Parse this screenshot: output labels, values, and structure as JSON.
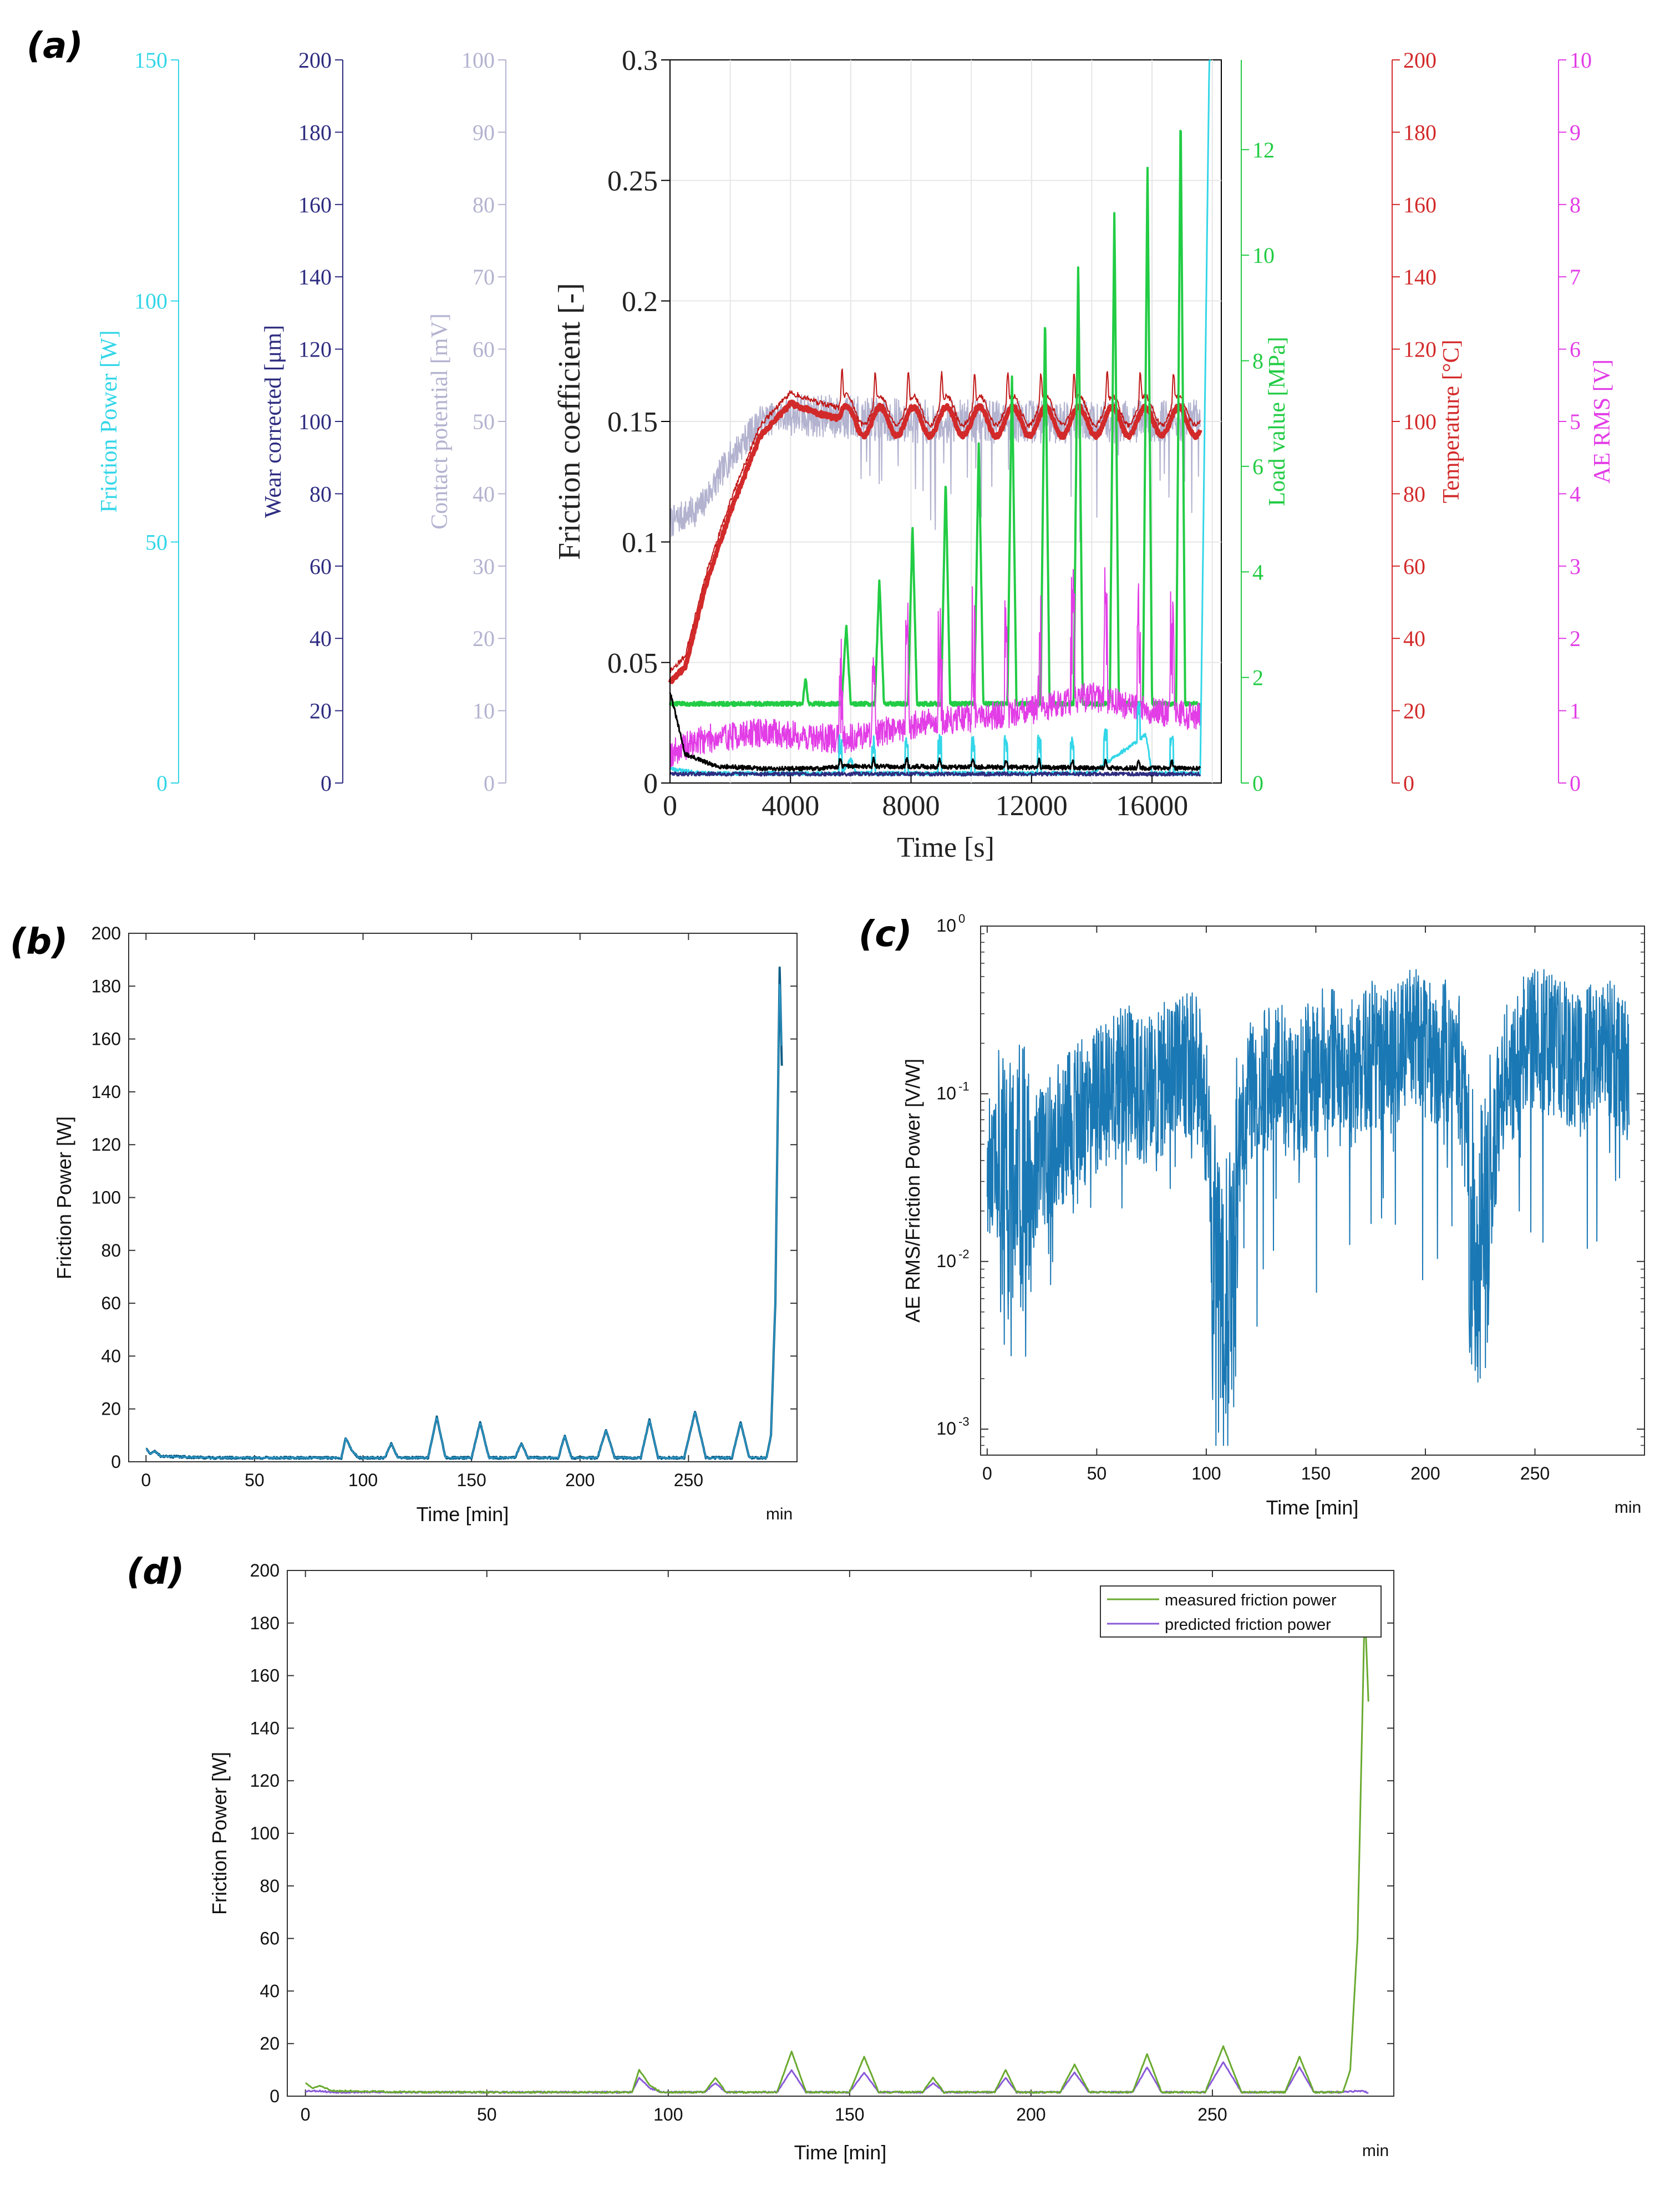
{
  "panel_labels": {
    "a": "(a)",
    "b": "(b)",
    "c": "(c)",
    "d": "(d)"
  },
  "colors": {
    "friction_power": "#33d6e8",
    "wear": "#2e2c80",
    "contact": "#b3b3d0",
    "friction": "#000000",
    "load": "#22cc44",
    "temperature": "#d22a2a",
    "ae": "#e23de6",
    "trace": "#1f77b4",
    "measured": "#6aaa30",
    "predicted": "#8a5ad8"
  },
  "chart_data": [
    {
      "panel": "a",
      "type": "line",
      "xlabel": "Time [s]",
      "xlim": [
        0,
        18300
      ],
      "xticks": [
        "0",
        "4000",
        "8000",
        "12000",
        "16000"
      ],
      "xtick_values": [
        0,
        4000,
        8000,
        12000,
        16000
      ],
      "axes": {
        "friction_power": {
          "label": "Friction Power [W]",
          "range": [
            0,
            150
          ],
          "ticks": [
            "0",
            "50",
            "100",
            "150"
          ]
        },
        "wear": {
          "label": "Wear corrected [μm]",
          "range": [
            0,
            200
          ],
          "ticks": [
            "0",
            "20",
            "40",
            "60",
            "80",
            "100",
            "120",
            "140",
            "160",
            "180",
            "200"
          ]
        },
        "contact": {
          "label": "Contact potential [mV]",
          "range": [
            0,
            100
          ],
          "ticks": [
            "0",
            "10",
            "20",
            "30",
            "40",
            "50",
            "60",
            "70",
            "80",
            "90",
            "100"
          ]
        },
        "friction": {
          "label": "Friction coefficient [-]",
          "range": [
            0,
            0.3
          ],
          "ticks": [
            "0",
            "0.05",
            "0.1",
            "0.15",
            "0.2",
            "0.25",
            "0.3"
          ]
        },
        "load": {
          "label": "Load value [MPa]",
          "range": [
            0,
            13.7
          ],
          "ticks": [
            "0",
            "2",
            "4",
            "6",
            "8",
            "10",
            "12"
          ]
        },
        "temperature": {
          "label": "Temperature [°C]",
          "range": [
            0,
            200
          ],
          "ticks": [
            "0",
            "20",
            "40",
            "60",
            "80",
            "100",
            "120",
            "140",
            "160",
            "180",
            "200"
          ]
        },
        "ae": {
          "label": "AE RMS [V]",
          "range": [
            0,
            10
          ],
          "ticks": [
            "0",
            "1",
            "2",
            "3",
            "4",
            "5",
            "6",
            "7",
            "8",
            "9",
            "10"
          ]
        }
      },
      "series": [
        {
          "name": "Friction coefficient",
          "axis": "friction",
          "points": [
            [
              0,
              0.038
            ],
            [
              500,
              0.012
            ],
            [
              1500,
              0.007
            ],
            [
              3000,
              0.006
            ],
            [
              5000,
              0.006
            ],
            [
              5700,
              0.007
            ],
            [
              18000,
              0.006
            ]
          ]
        },
        {
          "name": "Temperature",
          "axis": "temperature",
          "points": [
            [
              0,
              28
            ],
            [
              500,
              32
            ],
            [
              1200,
              55
            ],
            [
              2000,
              75
            ],
            [
              3000,
              96
            ],
            [
              4000,
              105
            ],
            [
              5000,
              102
            ],
            [
              6000,
              100
            ],
            [
              18000,
              100
            ]
          ]
        },
        {
          "name": "Contact potential",
          "axis": "contact",
          "points": [
            [
              0,
              36
            ],
            [
              1000,
              38
            ],
            [
              2000,
              45
            ],
            [
              3000,
              50
            ],
            [
              4000,
              51
            ],
            [
              8000,
              50
            ],
            [
              12000,
              50
            ],
            [
              16000,
              50
            ],
            [
              18000,
              50
            ]
          ]
        },
        {
          "name": "Load value",
          "axis": "load",
          "points": [
            [
              0,
              1.5
            ],
            [
              4400,
              1.5
            ],
            [
              4500,
              2.0
            ],
            [
              4600,
              1.5
            ],
            [
              5700,
              1.5
            ],
            [
              5850,
              3.0
            ],
            [
              6000,
              1.5
            ],
            [
              6800,
              1.5
            ],
            [
              6950,
              3.9
            ],
            [
              7100,
              1.5
            ],
            [
              7900,
              1.5
            ],
            [
              8050,
              4.9
            ],
            [
              8200,
              1.5
            ],
            [
              9000,
              1.5
            ],
            [
              9150,
              5.8
            ],
            [
              9300,
              1.5
            ],
            [
              10100,
              1.5
            ],
            [
              10250,
              6.5
            ],
            [
              10400,
              1.5
            ],
            [
              11200,
              1.5
            ],
            [
              11350,
              7.8
            ],
            [
              11500,
              1.5
            ],
            [
              12300,
              1.5
            ],
            [
              12450,
              8.9
            ],
            [
              12600,
              1.5
            ],
            [
              13400,
              1.5
            ],
            [
              13550,
              9.9
            ],
            [
              13700,
              1.5
            ],
            [
              14600,
              1.5
            ],
            [
              14750,
              10.9
            ],
            [
              14900,
              1.5
            ],
            [
              15700,
              1.5
            ],
            [
              15850,
              11.8
            ],
            [
              16000,
              1.5
            ],
            [
              16800,
              1.5
            ],
            [
              16950,
              12.8
            ],
            [
              17100,
              1.5
            ],
            [
              17600,
              1.5
            ]
          ]
        },
        {
          "name": "AE RMS",
          "axis": "ae",
          "points": [
            [
              0,
              0.4
            ],
            [
              1000,
              0.6
            ],
            [
              3000,
              0.7
            ],
            [
              5700,
              0.6
            ],
            [
              8000,
              0.8
            ],
            [
              12000,
              1.0
            ],
            [
              14000,
              1.2
            ],
            [
              16000,
              1.0
            ],
            [
              18000,
              0.9
            ]
          ]
        },
        {
          "name": "Friction Power",
          "axis": "friction_power",
          "points": [
            [
              0,
              3
            ],
            [
              1000,
              2
            ],
            [
              5700,
              2
            ],
            [
              6000,
              5
            ],
            [
              6200,
              2
            ],
            [
              14000,
              2
            ],
            [
              15800,
              10
            ],
            [
              16000,
              2
            ],
            [
              17600,
              2
            ],
            [
              17900,
              150
            ]
          ]
        }
      ]
    },
    {
      "panel": "b",
      "type": "line",
      "xlabel": "Time [min]",
      "ylabel": "Friction Power [W]",
      "xunit_note": "min",
      "xlim": [
        -8,
        300
      ],
      "ylim": [
        0,
        200
      ],
      "xticks": [
        "0",
        "50",
        "100",
        "150",
        "200",
        "250"
      ],
      "xtick_values": [
        0,
        50,
        100,
        150,
        200,
        250
      ],
      "yticks": [
        "0",
        "20",
        "40",
        "60",
        "80",
        "100",
        "120",
        "140",
        "160",
        "180",
        "200"
      ],
      "ytick_values": [
        0,
        20,
        40,
        60,
        80,
        100,
        120,
        140,
        160,
        180,
        200
      ],
      "series": [
        {
          "name": "Friction power",
          "x": [
            0,
            2,
            4,
            7,
            10,
            30,
            60,
            90,
            92,
            95,
            98,
            110,
            113,
            116,
            130,
            134,
            138,
            150,
            154,
            158,
            170,
            173,
            176,
            190,
            193,
            196,
            208,
            212,
            216,
            228,
            232,
            236,
            248,
            253,
            258,
            270,
            274,
            278,
            286,
            288,
            290,
            292,
            293
          ],
          "y": [
            5,
            3,
            4,
            2,
            2,
            1.5,
            1.5,
            1.5,
            9,
            4,
            1.5,
            1.5,
            7,
            1.5,
            1.5,
            17,
            1.5,
            1.5,
            15,
            1.5,
            1.5,
            7,
            1.5,
            1.5,
            10,
            1.5,
            1.5,
            12,
            1.5,
            1.5,
            16,
            1.5,
            1.5,
            19,
            1.5,
            1.5,
            15,
            1.5,
            1.5,
            10,
            60,
            187,
            150
          ]
        }
      ]
    },
    {
      "panel": "c",
      "type": "line",
      "yscale": "log",
      "xlabel": "Time [min]",
      "ylabel": "AE RMS/Friction Power [V/W]",
      "xunit_note": "min",
      "xlim": [
        -3,
        300
      ],
      "ylim": [
        0.0007,
        1
      ],
      "xticks": [
        "0",
        "50",
        "100",
        "150",
        "200",
        "250"
      ],
      "xtick_values": [
        0,
        50,
        100,
        150,
        200,
        250
      ],
      "ytick_bases": [
        "10",
        "10",
        "10",
        "10"
      ],
      "ytick_exponents": [
        "-3",
        "-2",
        "-1",
        "0"
      ],
      "ytick_values": [
        0.001,
        0.01,
        0.1,
        1
      ],
      "series": [
        {
          "name": "AE RMS / Friction Power",
          "x": [
            0,
            5,
            10,
            15,
            20,
            25,
            30,
            35,
            40,
            45,
            50,
            55,
            60,
            65,
            70,
            75,
            80,
            85,
            90,
            95,
            100,
            103,
            106,
            110,
            113,
            116,
            120,
            125,
            130,
            135,
            140,
            145,
            150,
            155,
            160,
            165,
            170,
            175,
            180,
            185,
            190,
            195,
            200,
            205,
            210,
            215,
            220,
            223,
            226,
            230,
            235,
            240,
            245,
            250,
            255,
            260,
            265,
            270,
            275,
            280,
            285,
            290,
            293
          ],
          "y_center": [
            0.04,
            0.03,
            0.02,
            0.025,
            0.03,
            0.04,
            0.05,
            0.06,
            0.07,
            0.08,
            0.09,
            0.1,
            0.12,
            0.13,
            0.11,
            0.1,
            0.12,
            0.15,
            0.15,
            0.14,
            0.08,
            0.01,
            0.005,
            0.006,
            0.01,
            0.05,
            0.1,
            0.12,
            0.14,
            0.12,
            0.1,
            0.12,
            0.15,
            0.16,
            0.14,
            0.12,
            0.15,
            0.18,
            0.16,
            0.15,
            0.2,
            0.22,
            0.2,
            0.18,
            0.17,
            0.15,
            0.02,
            0.01,
            0.012,
            0.03,
            0.1,
            0.15,
            0.18,
            0.2,
            0.22,
            0.18,
            0.16,
            0.15,
            0.18,
            0.2,
            0.18,
            0.16,
            0.1
          ]
        }
      ]
    },
    {
      "panel": "d",
      "type": "line",
      "xlabel": "Time [min]",
      "ylabel": "Friction Power [W]",
      "xunit_note": "min",
      "xlim": [
        -5,
        300
      ],
      "ylim": [
        0,
        200
      ],
      "xticks": [
        "0",
        "50",
        "100",
        "150",
        "200",
        "250"
      ],
      "xtick_values": [
        0,
        50,
        100,
        150,
        200,
        250
      ],
      "yticks": [
        "0",
        "20",
        "40",
        "60",
        "80",
        "100",
        "120",
        "140",
        "160",
        "180",
        "200"
      ],
      "ytick_values": [
        0,
        20,
        40,
        60,
        80,
        100,
        120,
        140,
        160,
        180,
        200
      ],
      "legend": [
        "measured friction power",
        "predicted friction power"
      ],
      "legend_position": "top-right",
      "series": [
        {
          "name": "measured friction power",
          "x": [
            0,
            2,
            4,
            7,
            10,
            30,
            60,
            90,
            92,
            95,
            98,
            110,
            113,
            116,
            130,
            134,
            138,
            150,
            154,
            158,
            170,
            173,
            176,
            190,
            193,
            196,
            208,
            212,
            216,
            228,
            232,
            236,
            248,
            253,
            258,
            270,
            274,
            278,
            286,
            288,
            290,
            292,
            293
          ],
          "y": [
            5,
            3,
            4,
            2,
            2,
            1.5,
            1.5,
            1.5,
            10,
            4,
            1.5,
            1.5,
            7,
            1.5,
            1.5,
            17,
            1.5,
            1.5,
            15,
            1.5,
            1.5,
            7,
            1.5,
            1.5,
            10,
            1.5,
            1.5,
            12,
            1.5,
            1.5,
            16,
            1.5,
            1.5,
            19,
            1.5,
            1.5,
            15,
            1.5,
            1.5,
            10,
            60,
            187,
            150
          ]
        },
        {
          "name": "predicted friction power",
          "x": [
            0,
            2,
            4,
            7,
            10,
            30,
            60,
            90,
            92,
            95,
            98,
            110,
            113,
            116,
            130,
            134,
            138,
            150,
            154,
            158,
            170,
            173,
            176,
            190,
            193,
            196,
            208,
            212,
            216,
            228,
            232,
            236,
            248,
            253,
            258,
            270,
            274,
            278,
            286,
            290,
            293
          ],
          "y": [
            2,
            2,
            2,
            1.5,
            1.5,
            1.5,
            1.5,
            1.5,
            7,
            3,
            1.5,
            1.5,
            5,
            1.5,
            1.5,
            10,
            1.5,
            1.5,
            9,
            1.5,
            1.5,
            5,
            1.5,
            1.5,
            7,
            1.5,
            1.5,
            9,
            1.5,
            1.5,
            11,
            1.5,
            1.5,
            13,
            1.5,
            1.5,
            11,
            1.5,
            1.5,
            2,
            1.5
          ]
        }
      ]
    }
  ]
}
